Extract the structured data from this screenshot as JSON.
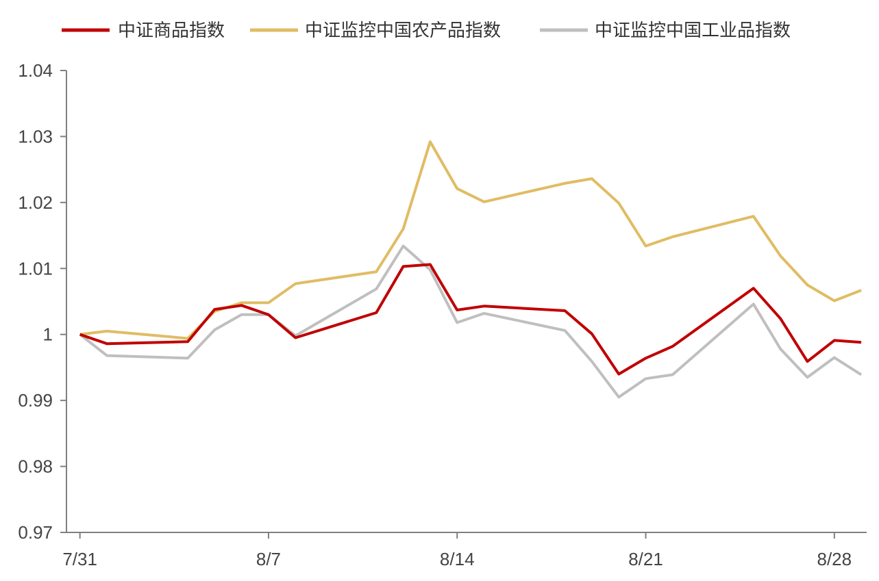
{
  "chart_data": {
    "type": "line",
    "x": [
      "7/31",
      "8/1",
      "8/4",
      "8/5",
      "8/6",
      "8/7",
      "8/8",
      "8/11",
      "8/12",
      "8/13",
      "8/14",
      "8/15",
      "8/18",
      "8/19",
      "8/20",
      "8/21",
      "8/22",
      "8/25",
      "8/26",
      "8/27",
      "8/28",
      "8/29"
    ],
    "x_dayoffsets": [
      0,
      1,
      4,
      5,
      6,
      7,
      8,
      11,
      12,
      13,
      14,
      15,
      18,
      19,
      20,
      21,
      22,
      25,
      26,
      27,
      28,
      29
    ],
    "xticks": [
      {
        "label": "7/31",
        "offset": 0
      },
      {
        "label": "8/7",
        "offset": 7
      },
      {
        "label": "8/14",
        "offset": 14
      },
      {
        "label": "8/21",
        "offset": 21
      },
      {
        "label": "8/28",
        "offset": 28
      }
    ],
    "yticks": [
      "0.97",
      "0.98",
      "0.99",
      "1",
      "1.01",
      "1.02",
      "1.03",
      "1.04"
    ],
    "ylim": [
      0.97,
      1.04
    ],
    "xlim": [
      -0.5,
      29.2
    ],
    "grid": false,
    "legend_position": "top",
    "series": [
      {
        "name": "中证商品指数",
        "color": "#C00000",
        "values": [
          1.0,
          0.9986,
          0.9989,
          1.0038,
          1.0044,
          1.003,
          0.9995,
          1.0033,
          1.0103,
          1.0106,
          1.0037,
          1.0043,
          1.0036,
          1.0001,
          0.994,
          0.9964,
          0.9982,
          1.007,
          1.0024,
          0.9959,
          0.9991,
          0.9988
        ]
      },
      {
        "name": "中证监控中国农产品指数",
        "color": "#E0BC64",
        "values": [
          1.0,
          1.0005,
          0.9994,
          1.0035,
          1.0048,
          1.0048,
          1.0077,
          1.0095,
          1.016,
          1.0292,
          1.0221,
          1.0201,
          1.0229,
          1.0236,
          1.0199,
          1.0134,
          1.0148,
          1.0179,
          1.0119,
          1.0075,
          1.0051,
          1.0067
        ]
      },
      {
        "name": "中证监控中国工业品指数",
        "color": "#BFBFBF",
        "values": [
          1.0,
          0.9968,
          0.9964,
          1.0007,
          1.003,
          1.003,
          0.9998,
          1.0069,
          1.0134,
          1.0098,
          1.0018,
          1.0032,
          1.0006,
          0.9959,
          0.9905,
          0.9933,
          0.9939,
          1.0046,
          0.9978,
          0.9935,
          0.9965,
          0.9939
        ]
      }
    ]
  }
}
